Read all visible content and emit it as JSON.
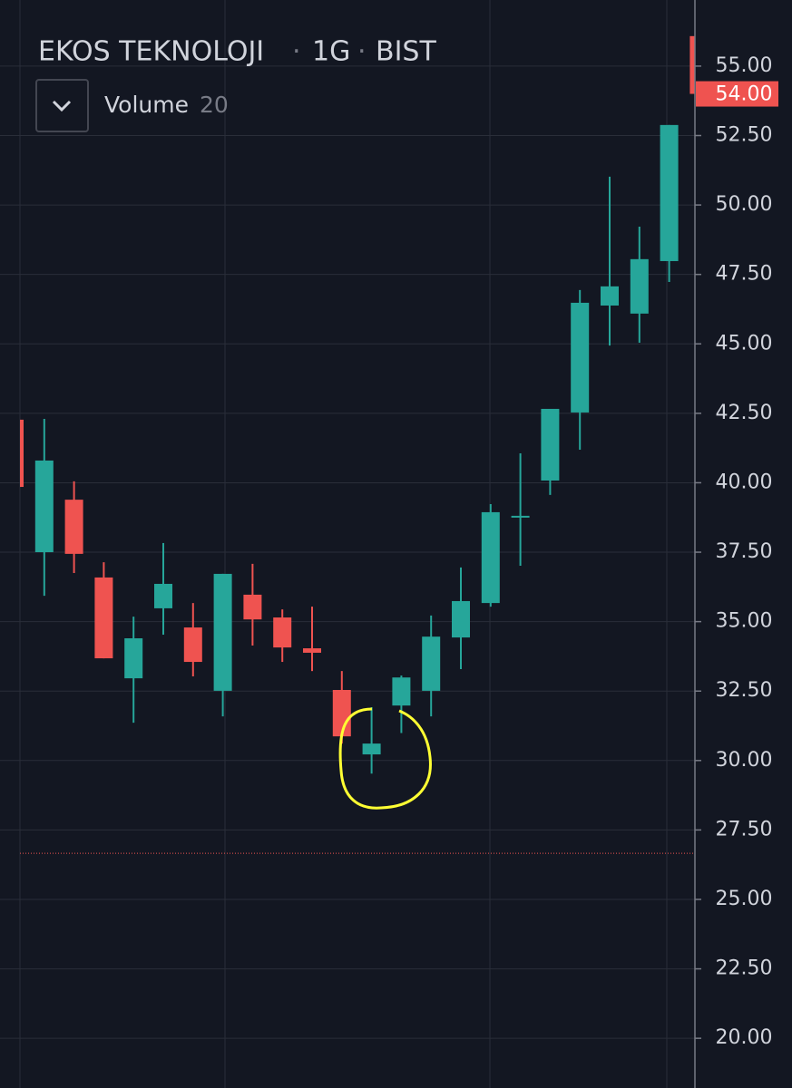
{
  "chart_data": {
    "type": "candlestick",
    "title": "EKOS TEKNOLOJI",
    "interval": "1G",
    "exchange": "BIST",
    "indicator": {
      "name": "Volume",
      "length": "20"
    },
    "series": [
      {
        "up_color": "#26a69a",
        "down_color": "#ef5350",
        "open": [
          42.27,
          37.5,
          39.39,
          36.59,
          32.96,
          35.48,
          34.79,
          32.51,
          35.97,
          35.15,
          34.04,
          32.54,
          30.22,
          31.98,
          32.51,
          34.43,
          35.67,
          38.75,
          40.08,
          42.53,
          46.38,
          46.09,
          47.98,
          56.08
        ],
        "high": [
          42.3,
          42.3,
          40.05,
          37.14,
          35.18,
          37.83,
          35.67,
          36.72,
          37.08,
          35.44,
          35.54,
          33.22,
          31.92,
          33.06,
          35.22,
          36.95,
          39.23,
          41.06,
          42.66,
          46.94,
          51.02,
          49.22,
          52.88,
          56.08
        ],
        "low": [
          39.85,
          35.93,
          36.75,
          33.68,
          31.36,
          34.53,
          33.03,
          31.59,
          34.14,
          33.55,
          33.22,
          30.61,
          29.53,
          30.99,
          31.59,
          33.29,
          35.54,
          37.01,
          39.56,
          41.19,
          44.94,
          45.04,
          47.23,
          54.0
        ],
        "close": [
          39.85,
          40.8,
          37.44,
          33.68,
          34.4,
          36.36,
          33.55,
          36.72,
          35.08,
          34.07,
          33.88,
          30.87,
          30.61,
          32.99,
          34.46,
          35.74,
          38.94,
          38.81,
          42.66,
          46.48,
          47.07,
          48.05,
          52.88,
          54
        ]
      }
    ],
    "ylim": [
      18.21,
      57.38
    ],
    "yticks": [
      {
        "value": 20,
        "label": "20.00"
      },
      {
        "value": 22.5,
        "label": "22.50"
      },
      {
        "value": 25,
        "label": "25.00"
      },
      {
        "value": 27.5,
        "label": "27.50"
      },
      {
        "value": 30,
        "label": "30.00"
      },
      {
        "value": 32.5,
        "label": "32.50"
      },
      {
        "value": 35,
        "label": "35.00"
      },
      {
        "value": 37.5,
        "label": "37.50"
      },
      {
        "value": 40,
        "label": "40.00"
      },
      {
        "value": 42.5,
        "label": "42.50"
      },
      {
        "value": 45,
        "label": "45.00"
      },
      {
        "value": 47.5,
        "label": "47.50"
      },
      {
        "value": 50,
        "label": "50.00"
      },
      {
        "value": 52.5,
        "label": "52.50"
      },
      {
        "value": 55,
        "label": "55.00"
      }
    ],
    "last_price": {
      "value": 54,
      "label": "54.00"
    },
    "price_line": 26.66,
    "grid": true
  }
}
